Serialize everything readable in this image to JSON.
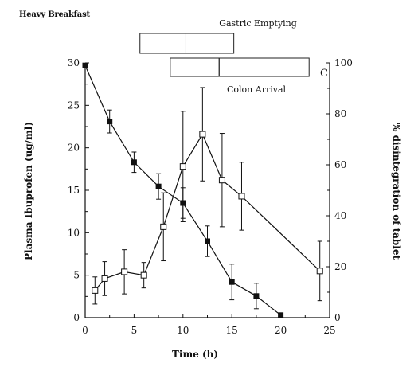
{
  "header": {
    "title": "Heavy Breakfast"
  },
  "panel_letter": "C",
  "chart_data": {
    "type": "line",
    "title": "Heavy Breakfast",
    "xlabel": "Time (h)",
    "ylabel_left": "Plasma Ibuprofen (ug/ml)",
    "ylabel_right": "% disintegration of tablet",
    "xlim": [
      0,
      25
    ],
    "ylim_left": [
      0,
      30
    ],
    "ylim_right": [
      0,
      100
    ],
    "xticks": [
      "0",
      "5",
      "10",
      "15",
      "20",
      "25"
    ],
    "yticks_left": [
      "0",
      "5",
      "10",
      "15",
      "20",
      "25",
      "30"
    ],
    "yticks_right": [
      "0",
      "20",
      "40",
      "60",
      "80",
      "100"
    ],
    "grid": false,
    "series": [
      {
        "marker": "filled-square",
        "axis": "right",
        "x": [
          0,
          2.5,
          5,
          7.5,
          10,
          12.5,
          15,
          17.5,
          20
        ],
        "y": [
          99,
          77,
          61,
          51.5,
          45,
          30,
          14,
          8.5,
          1
        ],
        "err": [
          0,
          4.5,
          4,
          5,
          6,
          6,
          7,
          5,
          0
        ]
      },
      {
        "marker": "open-square",
        "axis": "left",
        "x": [
          1,
          2,
          4,
          6,
          8,
          10,
          12,
          14,
          16,
          24
        ],
        "y": [
          3.2,
          4.6,
          5.4,
          5.0,
          10.7,
          17.8,
          21.6,
          16.2,
          14.3,
          5.5
        ],
        "err": [
          1.6,
          2.0,
          2.6,
          1.5,
          4.0,
          6.5,
          5.5,
          5.5,
          4.0,
          3.5
        ]
      }
    ],
    "annotations": [
      {
        "label": "Gastric Emptying",
        "bar_segments": [
          [
            5.6,
            10.3
          ],
          [
            10.3,
            15.2
          ]
        ]
      },
      {
        "label": "Colon Arrival",
        "bar_segments": [
          [
            8.7,
            13.7
          ],
          [
            13.7,
            22.9
          ]
        ]
      }
    ]
  }
}
